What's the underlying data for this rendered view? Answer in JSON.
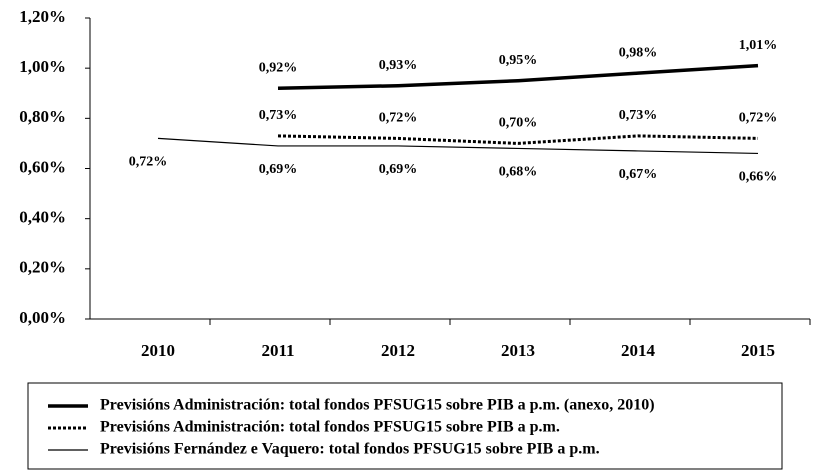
{
  "chart_data": {
    "type": "line",
    "categories": [
      "2010",
      "2011",
      "2012",
      "2013",
      "2014",
      "2015"
    ],
    "series": [
      {
        "name": "Previsións Administración: total fondos PFSUG15 sobre PIB a p.m. (anexo, 2010)",
        "color": "#000000",
        "style": "thick",
        "values": [
          null,
          0.92,
          0.93,
          0.95,
          0.98,
          1.01
        ],
        "value_labels": [
          null,
          "0,92%",
          "0,93%",
          "0,95%",
          "0,98%",
          "1,01%"
        ],
        "label_position": "above"
      },
      {
        "name": "Previsións Administración: total fondos PFSUG15 sobre PIB a p.m.",
        "color": "#000000",
        "style": "dotted",
        "values": [
          null,
          0.73,
          0.72,
          0.7,
          0.73,
          0.72
        ],
        "value_labels": [
          null,
          "0,73%",
          "0,72%",
          "0,70%",
          "0,73%",
          "0,72%"
        ],
        "label_position": "above"
      },
      {
        "name": "Previsións Fernández e Vaquero: total fondos PFSUG15 sobre PIB a p.m.",
        "color": "#000000",
        "style": "thin",
        "values": [
          0.72,
          0.69,
          0.69,
          0.68,
          0.67,
          0.66
        ],
        "value_labels": [
          "0,72%",
          "0,69%",
          "0,69%",
          "0,68%",
          "0,67%",
          "0,66%"
        ],
        "label_position": "below"
      }
    ],
    "ylim": [
      0,
      1.2
    ],
    "yticks": [
      {
        "value": 0,
        "label": "0,00%"
      },
      {
        "value": 0.2,
        "label": "0,20%"
      },
      {
        "value": 0.4,
        "label": "0,40%"
      },
      {
        "value": 0.6,
        "label": "0,60%"
      },
      {
        "value": 0.8,
        "label": "0,80%"
      },
      {
        "value": 1.0,
        "label": "1,00%"
      },
      {
        "value": 1.2,
        "label": "1,20%"
      }
    ],
    "grid": false,
    "legend": "bottom"
  }
}
